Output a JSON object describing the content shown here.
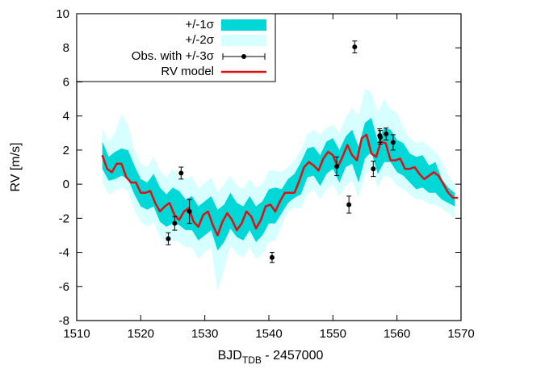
{
  "chart_data": {
    "type": "line",
    "title": "",
    "xlabel": {
      "main": "BJD",
      "sub": "TDB",
      "suffix": " - 2457000"
    },
    "ylabel": "RV [m/s]",
    "xlim": [
      1510,
      1570
    ],
    "ylim": [
      -8,
      10
    ],
    "x_ticks": [
      "1510",
      "1520",
      "1530",
      "1540",
      "1550",
      "1560",
      "1570"
    ],
    "y_ticks": [
      "-8",
      "-6",
      "-4",
      "-2",
      "0",
      "2",
      "4",
      "6",
      "8",
      "10"
    ],
    "grid": false,
    "legend_position": "top-left",
    "legend": [
      {
        "label": "+/-1σ",
        "kind": "band",
        "color": "#00d8d8"
      },
      {
        "label": "+/-2σ",
        "kind": "band",
        "color": "#d8ffff"
      },
      {
        "label": "Obs. with +/-3σ",
        "kind": "errorbar",
        "color": "#000000"
      },
      {
        "label": "RV model",
        "kind": "line",
        "color": "#dd1111"
      }
    ],
    "model": {
      "name": "RV model",
      "x": [
        1514.0,
        1514.75,
        1515.5,
        1516.25,
        1517.0,
        1517.75,
        1518.5,
        1519.25,
        1520.0,
        1520.75,
        1521.5,
        1522.25,
        1523.0,
        1523.75,
        1524.5,
        1525.25,
        1526.0,
        1526.75,
        1527.5,
        1528.25,
        1529.0,
        1529.75,
        1530.5,
        1531.25,
        1532.0,
        1532.75,
        1533.5,
        1534.25,
        1535.0,
        1535.75,
        1536.5,
        1537.25,
        1538.0,
        1538.75,
        1539.5,
        1540.25,
        1541.0,
        1541.75,
        1542.5,
        1543.25,
        1544.0,
        1544.75,
        1545.5,
        1546.25,
        1547.0,
        1547.75,
        1548.5,
        1549.25,
        1550.0,
        1550.75,
        1551.5,
        1552.25,
        1553.0,
        1553.75,
        1554.5,
        1555.25,
        1556.0,
        1556.75,
        1557.5,
        1558.25,
        1559.0,
        1559.75,
        1560.5,
        1561.25,
        1562.0,
        1562.75,
        1563.5,
        1564.25,
        1565.0,
        1565.75,
        1566.5,
        1567.25,
        1568.0,
        1568.75,
        1569.5
      ],
      "y": [
        1.7,
        0.9,
        0.7,
        1.2,
        1.2,
        0.4,
        0.1,
        0.1,
        -0.5,
        -0.5,
        -0.4,
        -1.1,
        -1.6,
        -1.3,
        -1.1,
        -1.8,
        -2.1,
        -1.6,
        -1.4,
        -2.2,
        -2.5,
        -1.8,
        -1.6,
        -2.4,
        -3.0,
        -2.2,
        -1.7,
        -2.1,
        -2.7,
        -2.3,
        -1.6,
        -1.9,
        -2.6,
        -2.1,
        -1.3,
        -1.2,
        -1.6,
        -1.0,
        -0.5,
        -0.5,
        -0.5,
        0.2,
        1.0,
        1.3,
        1.1,
        0.8,
        1.5,
        1.9,
        1.7,
        1.0,
        1.6,
        2.3,
        1.7,
        1.4,
        2.7,
        2.9,
        1.8,
        1.6,
        2.5,
        2.4,
        1.4,
        1.4,
        1.5,
        0.9,
        0.9,
        1.0,
        0.6,
        0.3,
        0.5,
        0.7,
        0.5,
        0.0,
        -0.5,
        -0.8,
        -0.8
      ]
    },
    "band_1sigma": {
      "label": "+/-1σ",
      "x": [
        1514.0,
        1515.0,
        1516.0,
        1517.0,
        1518.0,
        1519.0,
        1520.0,
        1521.0,
        1522.0,
        1523.0,
        1524.0,
        1525.0,
        1526.0,
        1527.0,
        1528.0,
        1529.0,
        1530.0,
        1531.0,
        1532.0,
        1533.0,
        1534.0,
        1535.0,
        1536.0,
        1537.0,
        1538.0,
        1539.0,
        1540.0,
        1541.0,
        1542.0,
        1543.0,
        1544.0,
        1545.0,
        1546.0,
        1547.0,
        1548.0,
        1549.0,
        1550.0,
        1551.0,
        1552.0,
        1553.0,
        1554.0,
        1555.0,
        1556.0,
        1557.0,
        1558.0,
        1559.0,
        1560.0,
        1561.0,
        1562.0,
        1563.0,
        1564.0,
        1565.0,
        1566.0,
        1567.0,
        1568.0,
        1569.0
      ],
      "upper": [
        2.5,
        1.6,
        1.9,
        2.1,
        2.0,
        1.1,
        0.3,
        0.1,
        0.6,
        -0.2,
        -0.6,
        -0.2,
        -0.4,
        -0.9,
        -0.7,
        -1.3,
        -1.0,
        -0.7,
        -1.5,
        -1.2,
        -0.5,
        -1.1,
        -1.3,
        -0.7,
        -1.3,
        -1.0,
        -0.3,
        -0.2,
        -0.3,
        0.3,
        0.6,
        1.3,
        2.1,
        2.2,
        1.7,
        2.5,
        2.7,
        2.0,
        2.8,
        3.2,
        2.2,
        3.6,
        3.9,
        2.5,
        3.3,
        3.2,
        2.6,
        2.4,
        1.8,
        1.6,
        1.7,
        1.1,
        1.3,
        0.3,
        -0.2,
        -0.5
      ],
      "lower": [
        0.9,
        0.2,
        0.3,
        0.5,
        0.3,
        -0.6,
        -1.3,
        -1.5,
        -1.3,
        -2.2,
        -2.5,
        -2.3,
        -2.4,
        -2.7,
        -2.7,
        -3.3,
        -3.0,
        -2.7,
        -3.9,
        -3.4,
        -2.6,
        -3.1,
        -3.3,
        -2.7,
        -3.4,
        -3.0,
        -2.3,
        -2.3,
        -1.7,
        -1.1,
        -0.8,
        -0.6,
        0.4,
        0.5,
        -0.1,
        0.6,
        0.9,
        0.1,
        1.0,
        1.2,
        0.1,
        1.5,
        1.9,
        0.6,
        1.3,
        1.3,
        0.7,
        0.5,
        0.1,
        -0.3,
        -0.2,
        -0.5,
        -0.5,
        -0.9,
        -1.1,
        -1.3
      ]
    },
    "band_2sigma": {
      "label": "+/-2σ",
      "x": [
        1514.0,
        1515.0,
        1516.0,
        1517.0,
        1518.0,
        1519.0,
        1520.0,
        1521.0,
        1522.0,
        1523.0,
        1524.0,
        1525.0,
        1526.0,
        1527.0,
        1528.0,
        1529.0,
        1530.0,
        1531.0,
        1532.0,
        1533.0,
        1534.0,
        1535.0,
        1536.0,
        1537.0,
        1538.0,
        1539.0,
        1540.0,
        1541.0,
        1542.0,
        1543.0,
        1544.0,
        1545.0,
        1546.0,
        1547.0,
        1548.0,
        1549.0,
        1550.0,
        1551.0,
        1552.0,
        1553.0,
        1554.0,
        1555.0,
        1556.0,
        1557.0,
        1558.0,
        1559.0,
        1560.0,
        1561.0,
        1562.0,
        1563.0,
        1564.0,
        1565.0,
        1566.0,
        1567.0,
        1568.0,
        1569.0
      ],
      "upper": [
        3.3,
        2.5,
        3.0,
        4.1,
        3.5,
        2.0,
        1.2,
        1.0,
        1.6,
        0.8,
        0.4,
        0.9,
        0.5,
        0.3,
        0.5,
        -0.3,
        0.1,
        0.4,
        -0.5,
        0.0,
        0.5,
        -0.1,
        -0.3,
        0.3,
        -0.2,
        0.0,
        0.8,
        0.8,
        0.7,
        1.0,
        1.4,
        2.0,
        2.9,
        3.2,
        2.9,
        3.3,
        3.5,
        3.0,
        3.9,
        4.5,
        4.0,
        5.6,
        5.4,
        4.2,
        5.0,
        4.4,
        4.2,
        3.3,
        2.7,
        2.4,
        2.5,
        2.2,
        1.9,
        1.4,
        0.5,
        0.0
      ],
      "lower": [
        0.1,
        -0.6,
        -0.4,
        -0.2,
        -0.4,
        -1.5,
        -2.2,
        -2.5,
        -2.2,
        -3.1,
        -3.5,
        -3.3,
        -3.4,
        -3.7,
        -3.7,
        -4.4,
        -4.0,
        -3.7,
        -6.3,
        -5.0,
        -3.6,
        -4.1,
        -4.3,
        -3.7,
        -4.4,
        -4.1,
        -3.4,
        -3.3,
        -2.4,
        -1.6,
        -1.4,
        -1.4,
        -0.6,
        -0.3,
        -0.9,
        -0.3,
        0.0,
        -0.7,
        -0.1,
        0.2,
        -0.8,
        0.5,
        1.0,
        -0.2,
        0.5,
        0.4,
        -0.1,
        -0.3,
        -0.6,
        -0.9,
        -0.9,
        -1.2,
        -1.2,
        -1.4,
        -1.7,
        -2.0
      ]
    },
    "observations": {
      "label": "Obs. with +/-3σ",
      "x": [
        1524.3,
        1525.3,
        1526.3,
        1527.6,
        1540.5,
        1550.6,
        1552.5,
        1553.4,
        1556.3,
        1557.3,
        1557.4,
        1558.3,
        1559.4
      ],
      "y": [
        -3.2,
        -2.3,
        0.65,
        -1.6,
        -4.3,
        1.05,
        -1.2,
        8.05,
        0.9,
        2.85,
        2.75,
        2.95,
        2.45
      ],
      "err": [
        0.35,
        0.4,
        0.35,
        0.7,
        0.3,
        0.55,
        0.5,
        0.35,
        0.45,
        0.4,
        0.4,
        0.35,
        0.45
      ]
    }
  }
}
